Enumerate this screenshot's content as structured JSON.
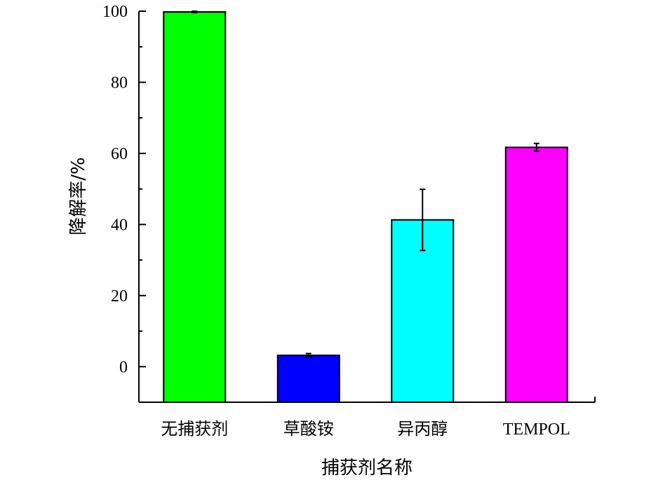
{
  "chart_data": {
    "type": "bar",
    "categories": [
      "无捕获剂",
      "草酸铵",
      "异丙醇",
      "TEMPOL"
    ],
    "values": [
      99.8,
      3.2,
      41.3,
      61.7
    ],
    "errors": [
      0.2,
      0.5,
      8.6,
      1.1
    ],
    "colors": [
      "#00ff00",
      "#0000ff",
      "#00ffff",
      "#ff00ff"
    ],
    "xlabel": "捕获剂名称",
    "ylabel": "降解率/%",
    "ylim": [
      -10,
      100
    ],
    "yticks": [
      0,
      20,
      40,
      60,
      80,
      100
    ],
    "yticks_minor": [
      10,
      30,
      50,
      70,
      90
    ],
    "grid": false,
    "legend": "none"
  }
}
